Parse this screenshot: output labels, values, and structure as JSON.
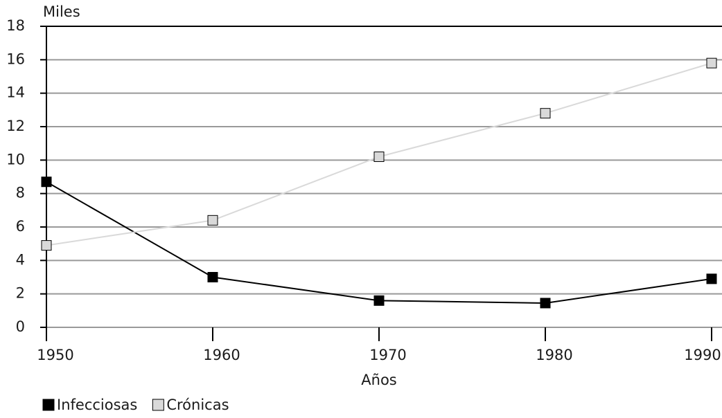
{
  "chart_data": {
    "type": "line",
    "y_label": "Miles",
    "x_label": "Años",
    "x": [
      1950,
      1960,
      1970,
      1980,
      1990
    ],
    "xlim": [
      1950,
      1990
    ],
    "xticks": [
      1950,
      1960,
      1970,
      1980,
      1990
    ],
    "ylim": [
      0,
      18
    ],
    "yticks": [
      0,
      2,
      4,
      6,
      8,
      10,
      12,
      14,
      16,
      18
    ],
    "grid": true,
    "legend": "bottom-left",
    "series": [
      {
        "name": "Infecciosas",
        "color": "#000000",
        "line_color": "#000000",
        "values": [
          8.7,
          3.0,
          1.6,
          1.45,
          2.9
        ]
      },
      {
        "name": "Crónicas",
        "color": "#d9d9d9",
        "line_color": "#d9d9d9",
        "values": [
          4.9,
          6.4,
          10.2,
          12.8,
          15.8
        ]
      }
    ]
  }
}
